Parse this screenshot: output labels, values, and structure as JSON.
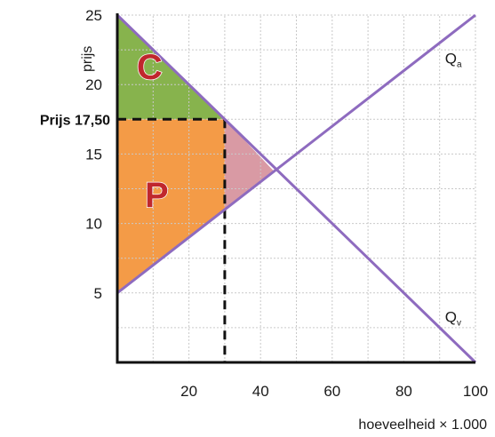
{
  "chart_data": {
    "type": "line",
    "ylabel": "prijs",
    "xlabel": "hoeveelheid × 1.000",
    "xlim": [
      0,
      100
    ],
    "ylim": [
      0,
      25
    ],
    "x_ticks": [
      "20",
      "40",
      "60",
      "80",
      "100"
    ],
    "x_tick_values": [
      20,
      40,
      60,
      80,
      100
    ],
    "y_ticks": [
      "5",
      "10",
      "15",
      "20",
      "25"
    ],
    "y_tick_values": [
      5,
      10,
      15,
      20,
      25
    ],
    "grid": true,
    "series": [
      {
        "name": "Qa",
        "label_main": "Q",
        "label_sub": "a",
        "x": [
          0,
          100
        ],
        "y": [
          5,
          25
        ],
        "color": "#8e6bbf"
      },
      {
        "name": "Qv",
        "label_main": "Q",
        "label_sub": "v",
        "x": [
          0,
          100
        ],
        "y": [
          25,
          0
        ],
        "color": "#8e6bbf"
      }
    ],
    "price_line": {
      "label": "Prijs 17,50",
      "value": 17.5,
      "quantity": 30
    },
    "areas": [
      {
        "label": "C",
        "color": "#7aab3a",
        "points": [
          [
            0,
            25
          ],
          [
            0,
            17.5
          ],
          [
            30,
            17.5
          ]
        ]
      },
      {
        "label": "P",
        "color": "#f39033",
        "points": [
          [
            0,
            17.5
          ],
          [
            30,
            17.5
          ],
          [
            30,
            11
          ],
          [
            0,
            5
          ]
        ]
      },
      {
        "label": "",
        "color": "#d58f9a",
        "points": [
          [
            30,
            17.5
          ],
          [
            30,
            11
          ],
          [
            43.75,
            13.75
          ]
        ]
      }
    ],
    "area_labels": [
      {
        "text": "C",
        "x": 9,
        "y": 20.4
      },
      {
        "text": "P",
        "x": 11,
        "y": 11.2
      }
    ]
  }
}
